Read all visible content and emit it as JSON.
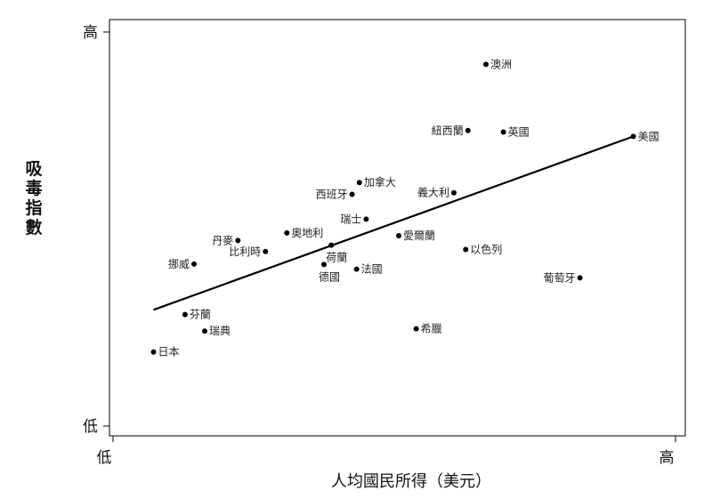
{
  "chart_data": {
    "type": "scatter",
    "title": "",
    "xlabel": "人均國民所得（美元）",
    "ylabel": "吸毒指數",
    "xlim": [
      0,
      100
    ],
    "ylim": [
      0,
      100
    ],
    "x_ticks": [
      {
        "value": 0,
        "label": "低"
      },
      {
        "value": 100,
        "label": "高"
      }
    ],
    "y_ticks": [
      {
        "value": 0,
        "label": "低"
      },
      {
        "value": 100,
        "label": "高"
      }
    ],
    "grid": false,
    "points": [
      {
        "label": "澳洲",
        "x": 66.3,
        "y": 91.8,
        "label_side": "right"
      },
      {
        "label": "紐西蘭",
        "x": 63.1,
        "y": 75.0,
        "label_side": "left"
      },
      {
        "label": "英國",
        "x": 69.4,
        "y": 74.6,
        "label_side": "right"
      },
      {
        "label": "美國",
        "x": 92.5,
        "y": 73.5,
        "label_side": "right"
      },
      {
        "label": "加拿大",
        "x": 43.8,
        "y": 61.8,
        "label_side": "right"
      },
      {
        "label": "西班牙",
        "x": 42.5,
        "y": 58.8,
        "label_side": "left"
      },
      {
        "label": "義大利",
        "x": 60.6,
        "y": 59.2,
        "label_side": "left"
      },
      {
        "label": "瑞士",
        "x": 45.0,
        "y": 52.5,
        "label_side": "left"
      },
      {
        "label": "丹麥",
        "x": 22.2,
        "y": 47.1,
        "label_side": "left"
      },
      {
        "label": "奧地利",
        "x": 30.9,
        "y": 49.0,
        "label_side": "right"
      },
      {
        "label": "愛爾蘭",
        "x": 50.8,
        "y": 48.3,
        "label_side": "right"
      },
      {
        "label": "荷蘭",
        "x": 38.8,
        "y": 45.9,
        "label_side": "below"
      },
      {
        "label": "比利時",
        "x": 27.1,
        "y": 44.3,
        "label_side": "left"
      },
      {
        "label": "以色列",
        "x": 62.7,
        "y": 44.8,
        "label_side": "right"
      },
      {
        "label": "挪威",
        "x": 14.4,
        "y": 41.1,
        "label_side": "left"
      },
      {
        "label": "德國",
        "x": 37.5,
        "y": 41.0,
        "label_side": "below"
      },
      {
        "label": "法國",
        "x": 43.3,
        "y": 39.8,
        "label_side": "right"
      },
      {
        "label": "葡萄牙",
        "x": 83.0,
        "y": 37.6,
        "label_side": "left"
      },
      {
        "label": "芬蘭",
        "x": 12.8,
        "y": 28.3,
        "label_side": "right"
      },
      {
        "label": "瑞典",
        "x": 16.3,
        "y": 24.1,
        "label_side": "right"
      },
      {
        "label": "希臘",
        "x": 53.9,
        "y": 24.7,
        "label_side": "right"
      },
      {
        "label": "日本",
        "x": 7.2,
        "y": 18.8,
        "label_side": "right"
      }
    ],
    "trendline": {
      "x": [
        7.2,
        92.5
      ],
      "y": [
        29.5,
        73.5
      ]
    }
  }
}
